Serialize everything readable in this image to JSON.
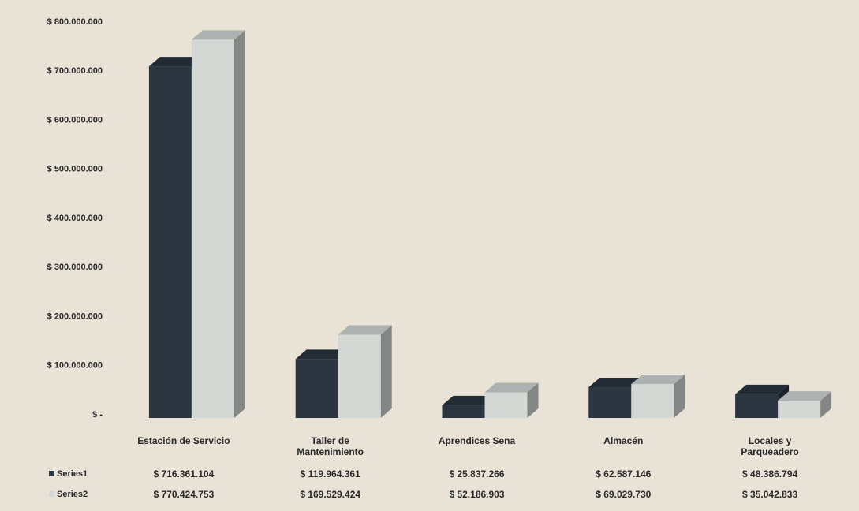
{
  "chart_data": {
    "type": "bar3d",
    "categories": [
      "Estación de Servicio",
      "Taller de Mantenimiento",
      "Aprendices Sena",
      "Almacén",
      "Locales y Parqueadero"
    ],
    "series": [
      {
        "name": "Series1",
        "color": "#2b3640",
        "values": [
          716361104,
          119964361,
          25837266,
          62587146,
          48386794
        ],
        "value_labels": [
          "$ 716.361.104",
          "$ 119.964.361",
          "$ 25.837.266",
          "$ 62.587.146",
          "$ 48.386.794"
        ]
      },
      {
        "name": "Series2",
        "color": "#d3d8d5",
        "values": [
          770424753,
          169529424,
          52186903,
          69029730,
          35042833
        ],
        "value_labels": [
          "$ 770.424.753",
          "$ 169.529.424",
          "$ 52.186.903",
          "$ 69.029.730",
          "$ 35.042.833"
        ]
      }
    ],
    "ylim": [
      0,
      800000000
    ],
    "yticks": [
      {
        "value": 0,
        "label": "$ -"
      },
      {
        "value": 100000000,
        "label": "$ 100.000.000"
      },
      {
        "value": 200000000,
        "label": "$ 200.000.000"
      },
      {
        "value": 300000000,
        "label": "$ 300.000.000"
      },
      {
        "value": 400000000,
        "label": "$ 400.000.000"
      },
      {
        "value": 500000000,
        "label": "$ 500.000.000"
      },
      {
        "value": 600000000,
        "label": "$ 600.000.000"
      },
      {
        "value": 700000000,
        "label": "$ 700.000.000"
      },
      {
        "value": 800000000,
        "label": "$ 800.000.000"
      }
    ],
    "grid": false
  }
}
